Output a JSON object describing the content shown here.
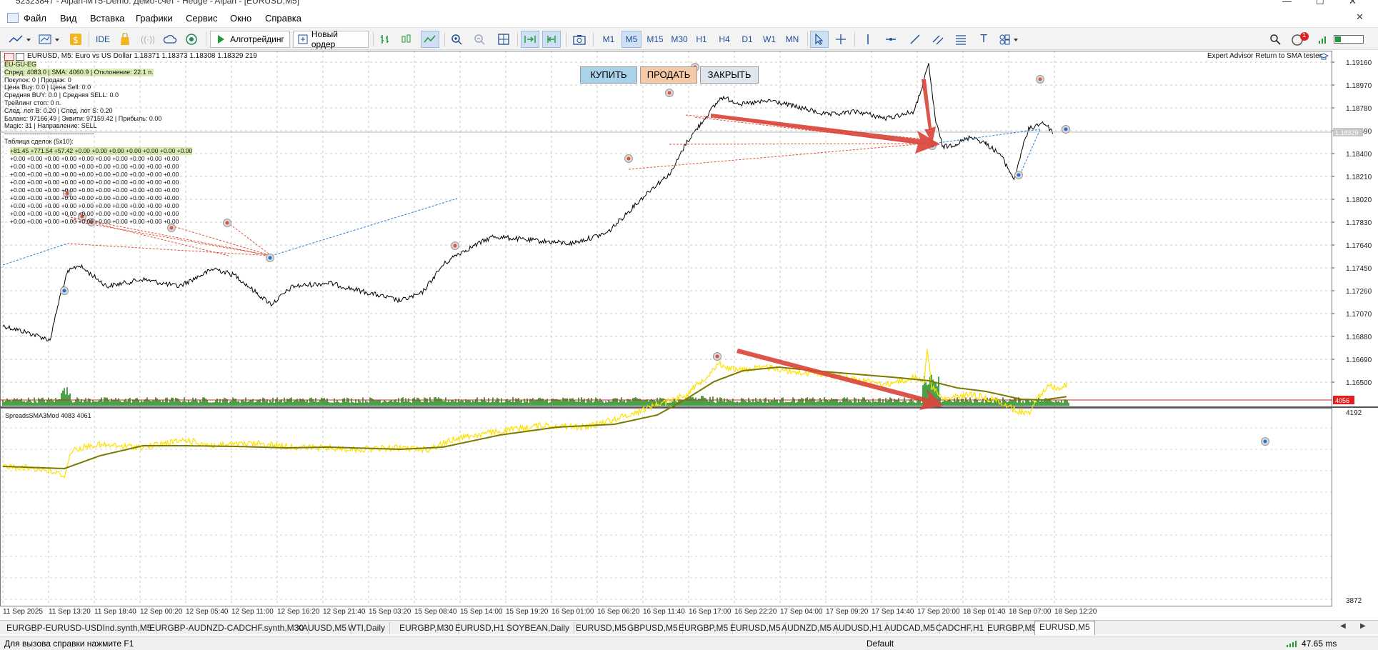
{
  "title": "52323847 - Alpari-MT5-Demo: Демо-счет - Hedge - Alpari - [EURUSD,M5]",
  "menu": [
    "Файл",
    "Вид",
    "Вставка",
    "Графики",
    "Сервис",
    "Окно",
    "Справка"
  ],
  "toolbar": {
    "ide": "IDE",
    "algo": "Алготрейдинг",
    "new_order": "Новый ордер",
    "timeframes": [
      "M1",
      "M5",
      "M15",
      "M30",
      "H1",
      "H4",
      "D1",
      "W1",
      "MN"
    ],
    "active_timeframe": "M5",
    "notification_count": "1"
  },
  "chart": {
    "header": "EURUSD, M5:  Euro vs US Dollar  1.18371 1.18373 1.18308 1.18329  219",
    "ea_label": "Expert Advisor Return to SMA tester",
    "current_price": "1.18329",
    "buttons": {
      "buy": "КУПИТЬ",
      "sell": "ПРОДАТЬ",
      "close": "ЗАКРЫТЬ"
    },
    "info": [
      "EU-GU-EG",
      "Спред: 4083.0 | SMA: 4060.9 | Отклонение: 22.1 п.",
      "Покупок: 0 | Продаж: 0",
      "Цена Buy: 0.0 | Цена Sell: 0.0",
      "Средняя BUY: 0.0 | Средняя SELL: 0.0",
      "Трейлинг стоп: 0 п.",
      "След. лот B: 0.20 | След. лот S: 0.20",
      "Баланс: 97166.49 | Эквити: 97159.42 | Прибыль: 0.00",
      "Magic: 31 | Направление: SELL",
      "------------------------------------------",
      "Таблица сделок (5x10):"
    ],
    "deals_first_row": "+81.45 +771.54 +57.42  +0.00   +0.00   +0.00   +0.00   +0.00   +0.00   +0.00",
    "deals_row": "+0.00   +0.00   +0.00   +0.00   +0.00   +0.00   +0.00   +0.00   +0.00   +0.00",
    "price_ticks": [
      "1.19160",
      "1.18970",
      "1.18780",
      "1.18590",
      "1.18400",
      "1.18210",
      "1.18020",
      "1.17830",
      "1.17640",
      "1.17450",
      "1.17260",
      "1.17070",
      "1.16880",
      "1.16690",
      "1.16500"
    ],
    "indicator_label": "SpreadsSMA3Mod 4083 4061",
    "indicator_ticks": [
      "4192",
      "3872"
    ],
    "indicator_level": "4056",
    "time_ticks": [
      "11 Sep 2025",
      "11 Sep 13:20",
      "11 Sep 18:40",
      "12 Sep 00:20",
      "12 Sep 05:40",
      "12 Sep 11:00",
      "12 Sep 16:20",
      "12 Sep 21:40",
      "15 Sep 03:20",
      "15 Sep 08:40",
      "15 Sep 14:00",
      "15 Sep 19:20",
      "16 Sep 01:00",
      "16 Sep 06:20",
      "16 Sep 11:40",
      "16 Sep 17:00",
      "16 Sep 22:20",
      "17 Sep 04:00",
      "17 Sep 09:20",
      "17 Sep 14:40",
      "17 Sep 20:00",
      "18 Sep 01:40",
      "18 Sep 07:00",
      "18 Sep 12:20"
    ]
  },
  "tabs": [
    "EURGBP-EURUSD-USDInd.synth,M5",
    "EURGBP-AUDNZD-CADCHF.synth,M30",
    "XAUUSD,M5",
    "WTI,Daily",
    "EURGBP,M30",
    "EURUSD,H1",
    "SOYBEAN,Daily",
    "EURUSD,M5",
    "GBPUSD,M5",
    "EURGBP,M5",
    "EURUSD,M5",
    "AUDNZD,M5",
    "AUDUSD,H1",
    "AUDCAD,M5",
    "CADCHF,H1",
    "EURGBP,M5",
    "EURUSD,M5"
  ],
  "active_tab_index": 16,
  "status": {
    "help": "Для вызова справки нажмите F1",
    "profile": "Default",
    "ping": "47.65 ms"
  },
  "colors": {
    "buy_btn": "#a9d3ea",
    "sell_btn": "#f6c9a6",
    "close_btn": "#dfe6ee",
    "spread_line": "#ffe000",
    "sma_line": "#7a7a00",
    "volume": "#1a8a1a",
    "arrow": "#d9453b",
    "level_line": "#e02020"
  }
}
